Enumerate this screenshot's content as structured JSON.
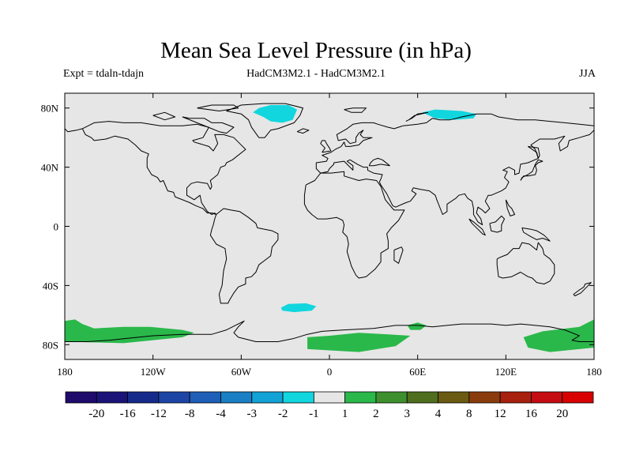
{
  "title": "Mean Sea Level Pressure (in hPa)",
  "subtitle_left": "Expt = tdaln-tdajn",
  "subtitle_center": "HadCM3M2.1 - HadCM3M2.1",
  "subtitle_right": "JJA",
  "chart_data": {
    "type": "heatmap",
    "projection": "cylindrical equidistant",
    "variable": "Mean Sea Level Pressure difference",
    "units": "hPa",
    "lon_range": [
      -180,
      180
    ],
    "lat_range": [
      -90,
      90
    ],
    "x_ticks": [
      {
        "value": -180,
        "label": "180"
      },
      {
        "value": -120,
        "label": "120W"
      },
      {
        "value": -60,
        "label": "60W"
      },
      {
        "value": 0,
        "label": "0"
      },
      {
        "value": 60,
        "label": "60E"
      },
      {
        "value": 120,
        "label": "120E"
      },
      {
        "value": 180,
        "label": "180"
      }
    ],
    "y_ticks": [
      {
        "value": 80,
        "label": "80N"
      },
      {
        "value": 40,
        "label": "40N"
      },
      {
        "value": 0,
        "label": "0"
      },
      {
        "value": -40,
        "label": "40S"
      },
      {
        "value": -80,
        "label": "80S"
      }
    ],
    "colorbar": {
      "labels": [
        "-20",
        "-16",
        "-12",
        "-8",
        "-4",
        "-3",
        "-2",
        "-1",
        "1",
        "2",
        "3",
        "4",
        "8",
        "12",
        "16",
        "20"
      ],
      "colors": [
        "#1f0b6b",
        "#1a1478",
        "#162a8c",
        "#1d45a6",
        "#1f5fb8",
        "#1a7fc4",
        "#12a2d6",
        "#12d6de",
        "#e6e6e6",
        "#2ab84a",
        "#3e8f2e",
        "#4f6e1e",
        "#6a5a12",
        "#8a3c0c",
        "#a8200e",
        "#c40c12",
        "#d80000"
      ]
    },
    "regions": [
      {
        "name": "Greenland",
        "class": "-2 to -1",
        "color": "#12d6de",
        "polygons": [
          [
            [
              -48,
              80
            ],
            [
              -40,
              82
            ],
            [
              -28,
              82
            ],
            [
              -22,
              79
            ],
            [
              -25,
              72
            ],
            [
              -32,
              70
            ],
            [
              -40,
              71
            ],
            [
              -45,
              74
            ],
            [
              -52,
              77
            ]
          ]
        ]
      },
      {
        "name": "Kara Sea / Siberia",
        "class": "-2 to -1",
        "color": "#12d6de",
        "polygons": [
          [
            [
              63,
              77
            ],
            [
              72,
              79
            ],
            [
              90,
              78
            ],
            [
              100,
              76
            ],
            [
              98,
              73
            ],
            [
              85,
              72
            ],
            [
              72,
              73
            ]
          ]
        ]
      },
      {
        "name": "South Atlantic",
        "class": "-2 to -1",
        "color": "#12d6de",
        "polygons": [
          [
            [
              -33,
              -55
            ],
            [
              -28,
              -52.5
            ],
            [
              -16,
              -52
            ],
            [
              -9,
              -54
            ],
            [
              -12,
              -57
            ],
            [
              -24,
              -58
            ],
            [
              -32,
              -57
            ]
          ]
        ]
      },
      {
        "name": "Southern Pacific / West Antarctica",
        "class": "1 to 2",
        "color": "#2ab84a",
        "polygons": [
          [
            [
              -180,
              -64
            ],
            [
              -173,
              -63
            ],
            [
              -168,
              -66
            ],
            [
              -160,
              -69
            ],
            [
              -140,
              -68
            ],
            [
              -122,
              -68
            ],
            [
              -100,
              -70
            ],
            [
              -92,
              -72
            ],
            [
              -100,
              -75
            ],
            [
              -140,
              -79
            ],
            [
              -180,
              -78
            ]
          ]
        ]
      },
      {
        "name": "Weddell / Atlantic sector",
        "class": "1 to 2",
        "color": "#2ab84a",
        "polygons": [
          [
            [
              -15,
              -75
            ],
            [
              0,
              -74
            ],
            [
              20,
              -72
            ],
            [
              40,
              -73
            ],
            [
              55,
              -74
            ],
            [
              45,
              -81
            ],
            [
              20,
              -85
            ],
            [
              -15,
              -83
            ]
          ],
          [
            [
              53,
              -67
            ],
            [
              60,
              -65
            ],
            [
              66,
              -67
            ],
            [
              62,
              -70
            ],
            [
              55,
              -70
            ]
          ]
        ]
      },
      {
        "name": "Ross / Pacific sector",
        "class": "1 to 2",
        "color": "#2ab84a",
        "polygons": [
          [
            [
              132,
              -75
            ],
            [
              145,
              -71
            ],
            [
              170,
              -68
            ],
            [
              180,
              -63
            ],
            [
              180,
              -82
            ],
            [
              150,
              -85
            ],
            [
              135,
              -82
            ]
          ]
        ]
      }
    ]
  }
}
